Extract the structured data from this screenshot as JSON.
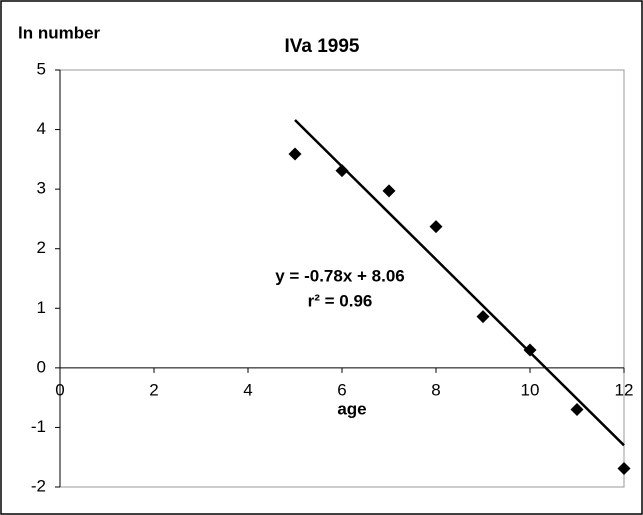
{
  "chart_data": {
    "type": "scatter",
    "title": "IVa 1995",
    "y_label": "ln number",
    "x_label": "age",
    "x": [
      5,
      6,
      7,
      8,
      9,
      10,
      11,
      12
    ],
    "values": [
      3.59,
      3.31,
      2.97,
      2.37,
      0.86,
      0.3,
      -0.7,
      -1.69
    ],
    "color": "#000000",
    "xlim": [
      0,
      12
    ],
    "xticks": [
      0,
      2,
      4,
      6,
      8,
      10,
      12
    ],
    "ylim": [
      -2,
      5
    ],
    "yticks": [
      -2,
      -1,
      0,
      1,
      2,
      3,
      4,
      5
    ],
    "grid": false,
    "trendline": {
      "slope": -0.78,
      "intercept": 8.06,
      "label": "y = -0.78x + 8.06",
      "r2": 0.96,
      "r2_label": "r² = 0.96",
      "color": "#000000"
    }
  }
}
